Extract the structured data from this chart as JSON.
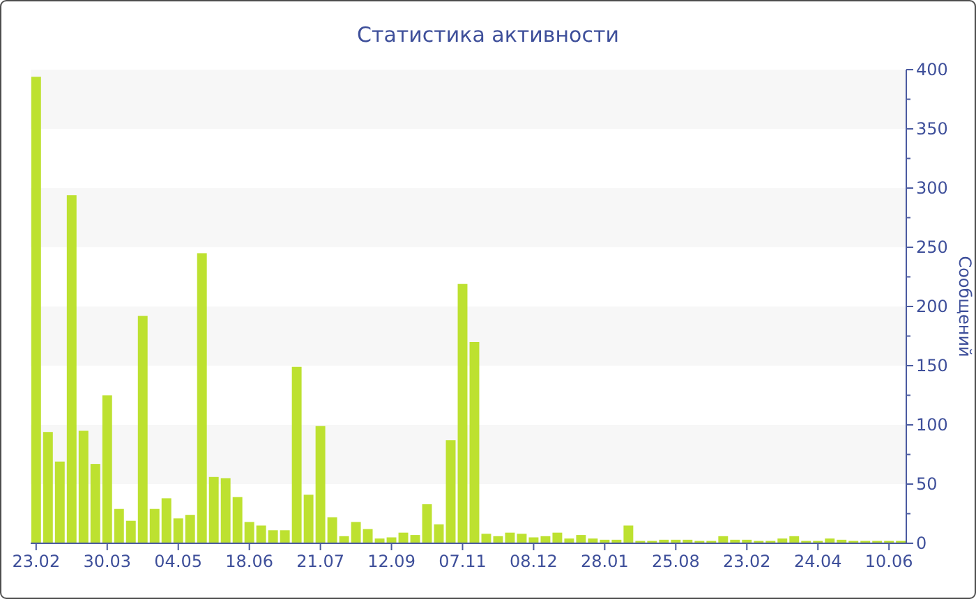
{
  "chart_data": {
    "type": "bar",
    "title": "Статистика активности",
    "ylabel": "Сообщений",
    "color": "#bde130",
    "categories": [
      "23.02",
      null,
      null,
      null,
      null,
      null,
      "30.03",
      null,
      null,
      null,
      null,
      null,
      "04.05",
      null,
      null,
      null,
      null,
      null,
      "18.06",
      null,
      null,
      null,
      null,
      null,
      "21.07",
      null,
      null,
      null,
      null,
      null,
      "12.09",
      null,
      null,
      null,
      null,
      null,
      "07.11",
      null,
      null,
      null,
      null,
      null,
      "08.12",
      null,
      null,
      null,
      null,
      null,
      "28.01",
      null,
      null,
      null,
      null,
      null,
      "25.08",
      null,
      null,
      null,
      null,
      null,
      "23.02",
      null,
      null,
      null,
      null,
      null,
      "24.04",
      null,
      null,
      null,
      null,
      null,
      "10.06",
      null
    ],
    "values": [
      394,
      94,
      69,
      294,
      95,
      67,
      125,
      29,
      19,
      192,
      29,
      38,
      21,
      24,
      245,
      56,
      55,
      39,
      18,
      15,
      11,
      11,
      149,
      41,
      99,
      22,
      6,
      18,
      12,
      4,
      5,
      9,
      7,
      33,
      16,
      87,
      219,
      170,
      8,
      6,
      9,
      8,
      5,
      6,
      9,
      4,
      7,
      4,
      3,
      3,
      15,
      2,
      2,
      3,
      3,
      3,
      2,
      2,
      6,
      3,
      3,
      2,
      2,
      4,
      6,
      2,
      2,
      4,
      3,
      2,
      2,
      2,
      2,
      2
    ],
    "ylim": [
      0,
      400
    ],
    "yticks": [
      0,
      {
        "value": 25,
        "label": null
      },
      50,
      {
        "value": 75,
        "label": null
      },
      100,
      {
        "value": 125,
        "label": null
      },
      150,
      {
        "value": 175,
        "label": null
      },
      200,
      {
        "value": 225,
        "label": null
      },
      250,
      {
        "value": 275,
        "label": null
      },
      300,
      {
        "value": 325,
        "label": null
      },
      350,
      {
        "value": 375,
        "label": null
      },
      400
    ],
    "legend": false
  }
}
